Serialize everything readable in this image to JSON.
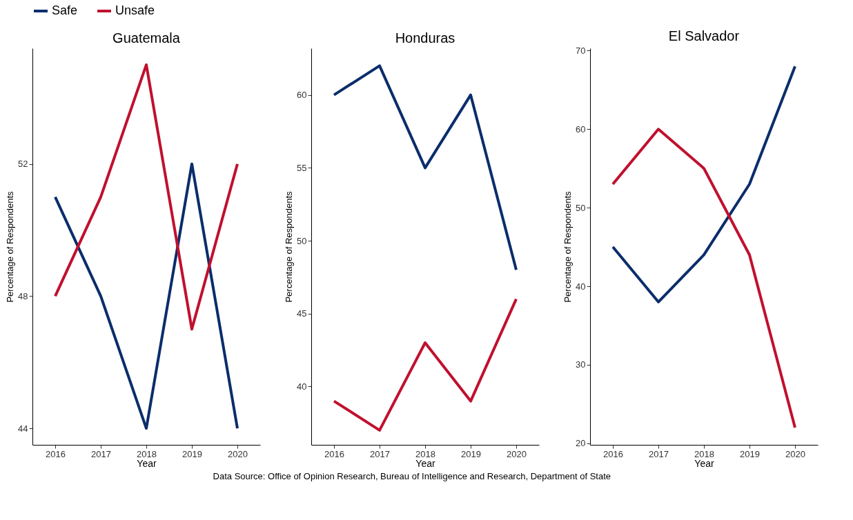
{
  "chart_data": [
    {
      "type": "line",
      "title": "Guatemala",
      "xlabel": "Year",
      "ylabel": "Percentage of Respondents",
      "categories": [
        "2016",
        "2017",
        "2018",
        "2019",
        "2020"
      ],
      "legend": "top",
      "grid": false,
      "ylim": [
        43.5,
        55.5
      ],
      "yticks": [
        44,
        48,
        52
      ],
      "series": [
        {
          "name": "Safe",
          "color": "#0b2d6b",
          "values": [
            51,
            48,
            44,
            52,
            44
          ]
        },
        {
          "name": "Unsafe",
          "color": "#c0102e",
          "values": [
            48,
            51,
            55,
            47,
            52
          ]
        }
      ]
    },
    {
      "type": "line",
      "title": "Honduras",
      "xlabel": "Year",
      "ylabel": "Percentage of Respondents",
      "categories": [
        "2016",
        "2017",
        "2018",
        "2019",
        "2020"
      ],
      "grid": false,
      "ylim": [
        36,
        63.2
      ],
      "yticks": [
        40,
        45,
        50,
        55,
        60
      ],
      "annotations": [
        "Data Source: Office of Opinion Research, Bureau of Intelligence and Research, Department of State"
      ],
      "series": [
        {
          "name": "Safe",
          "color": "#0b2d6b",
          "values": [
            60,
            62,
            55,
            60,
            48
          ]
        },
        {
          "name": "Unsafe",
          "color": "#c0102e",
          "values": [
            39,
            37,
            43,
            39,
            46
          ]
        }
      ]
    },
    {
      "type": "line",
      "title": "El Salvador",
      "xlabel": "Year",
      "ylabel": "Percentage of Respondents",
      "categories": [
        "2016",
        "2017",
        "2018",
        "2019",
        "2020"
      ],
      "grid": false,
      "ylim": [
        19.8,
        70.3
      ],
      "yticks": [
        20,
        30,
        40,
        50,
        60,
        70
      ],
      "series": [
        {
          "name": "Safe",
          "color": "#0b2d6b",
          "values": [
            45,
            38,
            44,
            53,
            68
          ]
        },
        {
          "name": "Unsafe",
          "color": "#c0102e",
          "values": [
            53,
            60,
            55,
            44,
            22
          ]
        }
      ]
    }
  ]
}
